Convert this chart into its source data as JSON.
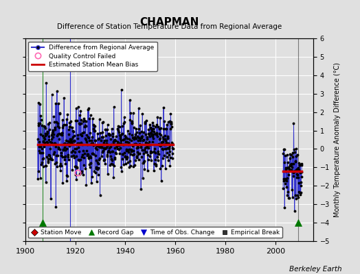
{
  "title": "CHAPMAN",
  "subtitle": "Difference of Station Temperature Data from Regional Average",
  "ylabel_right": "Monthly Temperature Anomaly Difference (°C)",
  "xlim": [
    1900,
    2015
  ],
  "ylim": [
    -5,
    6
  ],
  "yticks": [
    -5,
    -4,
    -3,
    -2,
    -1,
    0,
    1,
    2,
    3,
    4,
    5,
    6
  ],
  "xticks": [
    1900,
    1920,
    1940,
    1960,
    1980,
    2000
  ],
  "bg_color": "#e0e0e0",
  "grid_color": "white",
  "line_color": "#3333cc",
  "dot_color": "#000000",
  "bias_color": "#cc0000",
  "qc_color": "#ff69b4",
  "record_gap_color": "#007700",
  "time_obs_color": "#0000cc",
  "station_move_color": "#cc0000",
  "empirical_break_color": "#333333",
  "bias_value_early": 0.25,
  "bias_value_late": -1.2,
  "seed": 17,
  "period1_start": 1905.0,
  "period1_end": 1959.0,
  "period2_start": 2003.0,
  "period2_end": 2010.5,
  "record_gaps": [
    1907
  ],
  "time_obs_changes": [
    1918
  ],
  "empirical_breaks": [
    2009
  ],
  "qc_failed": [
    [
      1921,
      -1.3
    ]
  ],
  "event_marker_y": -4.0,
  "berkeley_earth_label": "Berkeley Earth"
}
